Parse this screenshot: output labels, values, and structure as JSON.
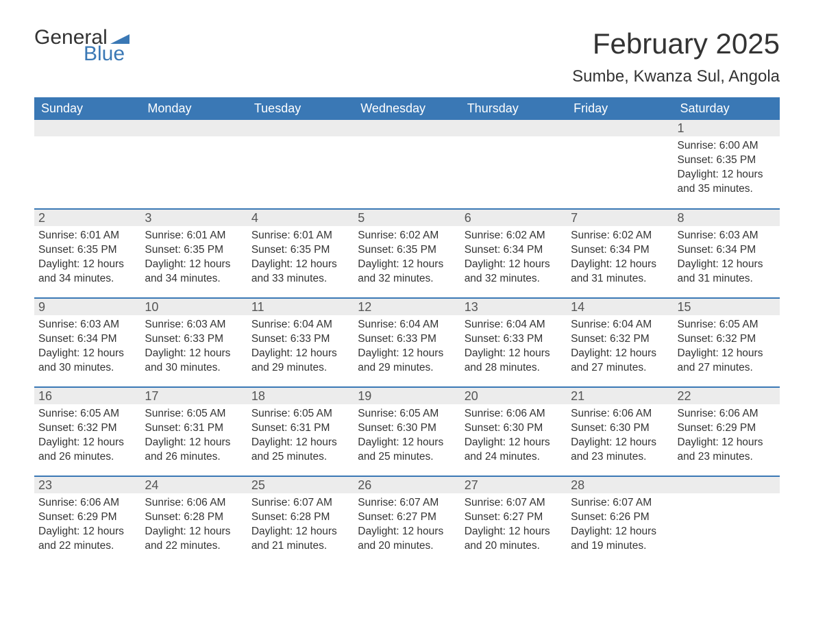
{
  "logo": {
    "text1": "General",
    "text2": "Blue",
    "flag_color": "#3a78b5"
  },
  "title": "February 2025",
  "location": "Sumbe, Kwanza Sul, Angola",
  "colors": {
    "header_bg": "#3a78b5",
    "header_text": "#ffffff",
    "daynum_bg": "#ececec",
    "daynum_text": "#555555",
    "body_text": "#333333",
    "row_border": "#3a78b5"
  },
  "weekdays": [
    "Sunday",
    "Monday",
    "Tuesday",
    "Wednesday",
    "Thursday",
    "Friday",
    "Saturday"
  ],
  "weeks": [
    [
      null,
      null,
      null,
      null,
      null,
      null,
      {
        "n": "1",
        "sunrise": "Sunrise: 6:00 AM",
        "sunset": "Sunset: 6:35 PM",
        "daylight": "Daylight: 12 hours and 35 minutes."
      }
    ],
    [
      {
        "n": "2",
        "sunrise": "Sunrise: 6:01 AM",
        "sunset": "Sunset: 6:35 PM",
        "daylight": "Daylight: 12 hours and 34 minutes."
      },
      {
        "n": "3",
        "sunrise": "Sunrise: 6:01 AM",
        "sunset": "Sunset: 6:35 PM",
        "daylight": "Daylight: 12 hours and 34 minutes."
      },
      {
        "n": "4",
        "sunrise": "Sunrise: 6:01 AM",
        "sunset": "Sunset: 6:35 PM",
        "daylight": "Daylight: 12 hours and 33 minutes."
      },
      {
        "n": "5",
        "sunrise": "Sunrise: 6:02 AM",
        "sunset": "Sunset: 6:35 PM",
        "daylight": "Daylight: 12 hours and 32 minutes."
      },
      {
        "n": "6",
        "sunrise": "Sunrise: 6:02 AM",
        "sunset": "Sunset: 6:34 PM",
        "daylight": "Daylight: 12 hours and 32 minutes."
      },
      {
        "n": "7",
        "sunrise": "Sunrise: 6:02 AM",
        "sunset": "Sunset: 6:34 PM",
        "daylight": "Daylight: 12 hours and 31 minutes."
      },
      {
        "n": "8",
        "sunrise": "Sunrise: 6:03 AM",
        "sunset": "Sunset: 6:34 PM",
        "daylight": "Daylight: 12 hours and 31 minutes."
      }
    ],
    [
      {
        "n": "9",
        "sunrise": "Sunrise: 6:03 AM",
        "sunset": "Sunset: 6:34 PM",
        "daylight": "Daylight: 12 hours and 30 minutes."
      },
      {
        "n": "10",
        "sunrise": "Sunrise: 6:03 AM",
        "sunset": "Sunset: 6:33 PM",
        "daylight": "Daylight: 12 hours and 30 minutes."
      },
      {
        "n": "11",
        "sunrise": "Sunrise: 6:04 AM",
        "sunset": "Sunset: 6:33 PM",
        "daylight": "Daylight: 12 hours and 29 minutes."
      },
      {
        "n": "12",
        "sunrise": "Sunrise: 6:04 AM",
        "sunset": "Sunset: 6:33 PM",
        "daylight": "Daylight: 12 hours and 29 minutes."
      },
      {
        "n": "13",
        "sunrise": "Sunrise: 6:04 AM",
        "sunset": "Sunset: 6:33 PM",
        "daylight": "Daylight: 12 hours and 28 minutes."
      },
      {
        "n": "14",
        "sunrise": "Sunrise: 6:04 AM",
        "sunset": "Sunset: 6:32 PM",
        "daylight": "Daylight: 12 hours and 27 minutes."
      },
      {
        "n": "15",
        "sunrise": "Sunrise: 6:05 AM",
        "sunset": "Sunset: 6:32 PM",
        "daylight": "Daylight: 12 hours and 27 minutes."
      }
    ],
    [
      {
        "n": "16",
        "sunrise": "Sunrise: 6:05 AM",
        "sunset": "Sunset: 6:32 PM",
        "daylight": "Daylight: 12 hours and 26 minutes."
      },
      {
        "n": "17",
        "sunrise": "Sunrise: 6:05 AM",
        "sunset": "Sunset: 6:31 PM",
        "daylight": "Daylight: 12 hours and 26 minutes."
      },
      {
        "n": "18",
        "sunrise": "Sunrise: 6:05 AM",
        "sunset": "Sunset: 6:31 PM",
        "daylight": "Daylight: 12 hours and 25 minutes."
      },
      {
        "n": "19",
        "sunrise": "Sunrise: 6:05 AM",
        "sunset": "Sunset: 6:30 PM",
        "daylight": "Daylight: 12 hours and 25 minutes."
      },
      {
        "n": "20",
        "sunrise": "Sunrise: 6:06 AM",
        "sunset": "Sunset: 6:30 PM",
        "daylight": "Daylight: 12 hours and 24 minutes."
      },
      {
        "n": "21",
        "sunrise": "Sunrise: 6:06 AM",
        "sunset": "Sunset: 6:30 PM",
        "daylight": "Daylight: 12 hours and 23 minutes."
      },
      {
        "n": "22",
        "sunrise": "Sunrise: 6:06 AM",
        "sunset": "Sunset: 6:29 PM",
        "daylight": "Daylight: 12 hours and 23 minutes."
      }
    ],
    [
      {
        "n": "23",
        "sunrise": "Sunrise: 6:06 AM",
        "sunset": "Sunset: 6:29 PM",
        "daylight": "Daylight: 12 hours and 22 minutes."
      },
      {
        "n": "24",
        "sunrise": "Sunrise: 6:06 AM",
        "sunset": "Sunset: 6:28 PM",
        "daylight": "Daylight: 12 hours and 22 minutes."
      },
      {
        "n": "25",
        "sunrise": "Sunrise: 6:07 AM",
        "sunset": "Sunset: 6:28 PM",
        "daylight": "Daylight: 12 hours and 21 minutes."
      },
      {
        "n": "26",
        "sunrise": "Sunrise: 6:07 AM",
        "sunset": "Sunset: 6:27 PM",
        "daylight": "Daylight: 12 hours and 20 minutes."
      },
      {
        "n": "27",
        "sunrise": "Sunrise: 6:07 AM",
        "sunset": "Sunset: 6:27 PM",
        "daylight": "Daylight: 12 hours and 20 minutes."
      },
      {
        "n": "28",
        "sunrise": "Sunrise: 6:07 AM",
        "sunset": "Sunset: 6:26 PM",
        "daylight": "Daylight: 12 hours and 19 minutes."
      },
      null
    ]
  ]
}
